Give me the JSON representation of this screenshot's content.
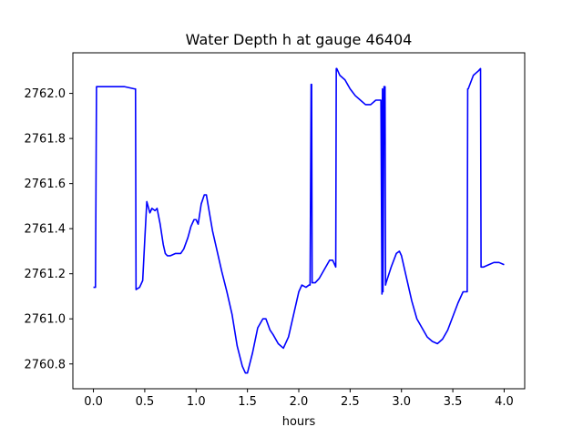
{
  "chart_data": {
    "type": "line",
    "title": "Water Depth h at gauge 46404",
    "xlabel": "hours",
    "ylabel": "",
    "xlim": [
      -0.2,
      4.2
    ],
    "ylim": [
      2760.69,
      2762.18
    ],
    "xticks": [
      0.0,
      0.5,
      1.0,
      1.5,
      2.0,
      2.5,
      3.0,
      3.5,
      4.0
    ],
    "xtick_labels": [
      "0.0",
      "0.5",
      "1.0",
      "1.5",
      "2.0",
      "2.5",
      "3.0",
      "3.5",
      "4.0"
    ],
    "yticks": [
      2760.8,
      2761.0,
      2761.2,
      2761.4,
      2761.6,
      2761.8,
      2762.0
    ],
    "ytick_labels": [
      "2760.8",
      "2761.0",
      "2761.2",
      "2761.4",
      "2761.6",
      "2761.8",
      "2762.0"
    ],
    "grid": false,
    "series": [
      {
        "color": "#0000ff",
        "x": [
          0.0,
          0.02,
          0.03,
          0.1,
          0.2,
          0.3,
          0.4,
          0.41,
          0.415,
          0.45,
          0.48,
          0.5,
          0.52,
          0.55,
          0.57,
          0.6,
          0.62,
          0.65,
          0.68,
          0.7,
          0.72,
          0.75,
          0.8,
          0.85,
          0.88,
          0.92,
          0.95,
          0.98,
          1.0,
          1.02,
          1.05,
          1.08,
          1.1,
          1.13,
          1.16,
          1.2,
          1.25,
          1.3,
          1.35,
          1.4,
          1.45,
          1.48,
          1.5,
          1.55,
          1.6,
          1.65,
          1.68,
          1.72,
          1.75,
          1.8,
          1.85,
          1.9,
          1.95,
          2.0,
          2.03,
          2.07,
          2.1,
          2.11,
          2.12,
          2.125,
          2.13,
          2.14,
          2.16,
          2.2,
          2.25,
          2.3,
          2.33,
          2.36,
          2.365,
          2.37,
          2.4,
          2.45,
          2.5,
          2.55,
          2.6,
          2.65,
          2.7,
          2.75,
          2.78,
          2.8,
          2.81,
          2.815,
          2.82,
          2.83,
          2.84,
          2.845,
          2.85,
          2.9,
          2.95,
          2.98,
          3.0,
          3.05,
          3.1,
          3.15,
          3.2,
          3.25,
          3.3,
          3.35,
          3.4,
          3.45,
          3.5,
          3.55,
          3.6,
          3.64,
          3.645,
          3.65,
          3.7,
          3.75,
          3.77,
          3.775,
          3.8,
          3.85,
          3.9,
          3.95,
          4.0
        ],
        "y": [
          2761.14,
          2761.14,
          2762.03,
          2762.03,
          2762.03,
          2762.03,
          2762.02,
          2762.02,
          2761.13,
          2761.14,
          2761.17,
          2761.35,
          2761.52,
          2761.47,
          2761.49,
          2761.48,
          2761.49,
          2761.42,
          2761.33,
          2761.29,
          2761.28,
          2761.28,
          2761.29,
          2761.29,
          2761.31,
          2761.36,
          2761.41,
          2761.44,
          2761.44,
          2761.42,
          2761.51,
          2761.55,
          2761.55,
          2761.47,
          2761.39,
          2761.31,
          2761.21,
          2761.12,
          2761.02,
          2760.88,
          2760.79,
          2760.76,
          2760.76,
          2760.85,
          2760.96,
          2761.0,
          2761.0,
          2760.95,
          2760.93,
          2760.89,
          2760.87,
          2760.92,
          2761.02,
          2761.12,
          2761.15,
          2761.14,
          2761.15,
          2761.15,
          2762.04,
          2762.04,
          2761.16,
          2761.16,
          2761.16,
          2761.18,
          2761.22,
          2761.26,
          2761.26,
          2761.23,
          2762.11,
          2762.11,
          2762.08,
          2762.06,
          2762.02,
          2761.99,
          2761.97,
          2761.95,
          2761.95,
          2761.97,
          2761.97,
          2761.97,
          2761.11,
          2762.02,
          2761.12,
          2762.03,
          2762.03,
          2761.15,
          2761.16,
          2761.23,
          2761.29,
          2761.3,
          2761.28,
          2761.18,
          2761.08,
          2761.0,
          2760.96,
          2760.92,
          2760.9,
          2760.89,
          2760.91,
          2760.95,
          2761.01,
          2761.07,
          2761.12,
          2761.12,
          2762.02,
          2762.02,
          2762.08,
          2762.1,
          2762.11,
          2761.23,
          2761.23,
          2761.24,
          2761.25,
          2761.25,
          2761.24
        ]
      }
    ]
  }
}
